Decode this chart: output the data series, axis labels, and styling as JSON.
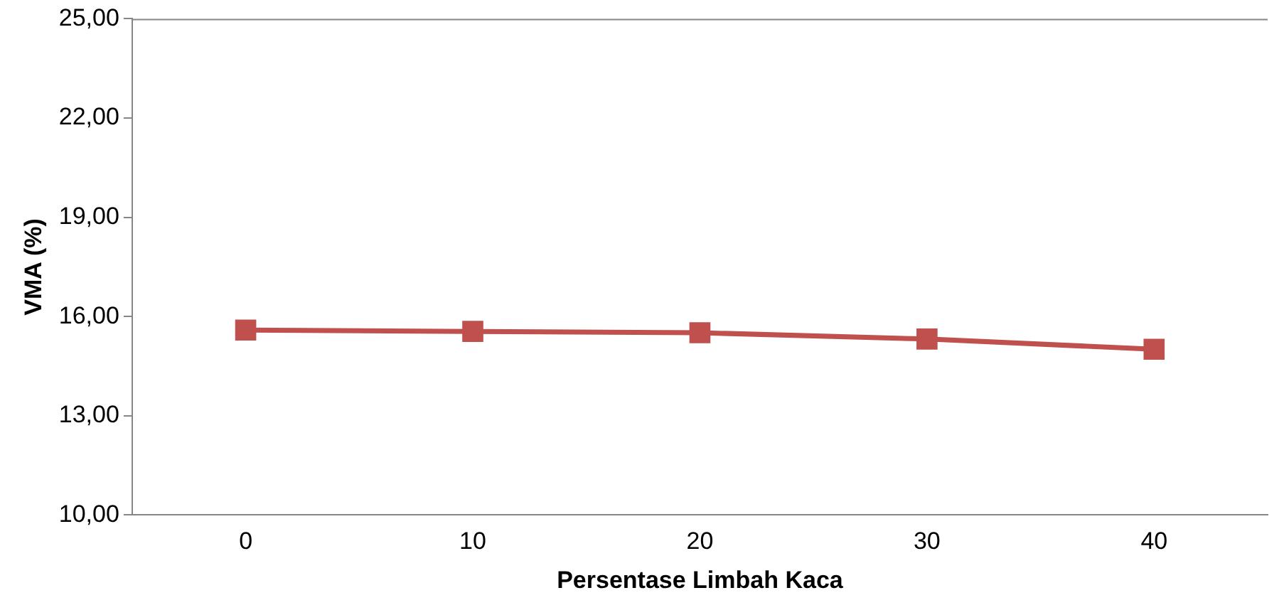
{
  "chart_data": {
    "type": "line",
    "xlabel": "Persentase Limbah Kaca",
    "ylabel": "VMA (%)",
    "categories": [
      "0",
      "10",
      "20",
      "30",
      "40"
    ],
    "series": [
      {
        "color": "#c0504d",
        "values": [
          15.59,
          15.55,
          15.51,
          15.32,
          15.01
        ]
      }
    ],
    "ylim": [
      10,
      25
    ],
    "yticks": [
      {
        "value": 10,
        "label": "10,00"
      },
      {
        "value": 13,
        "label": "13,00"
      },
      {
        "value": 16,
        "label": "16,00"
      },
      {
        "value": 19,
        "label": "19,00"
      },
      {
        "value": 22,
        "label": "22,00"
      },
      {
        "value": 25,
        "label": "25,00"
      }
    ],
    "grid": false,
    "legend": false,
    "marker": "square",
    "line_style": "solid"
  }
}
